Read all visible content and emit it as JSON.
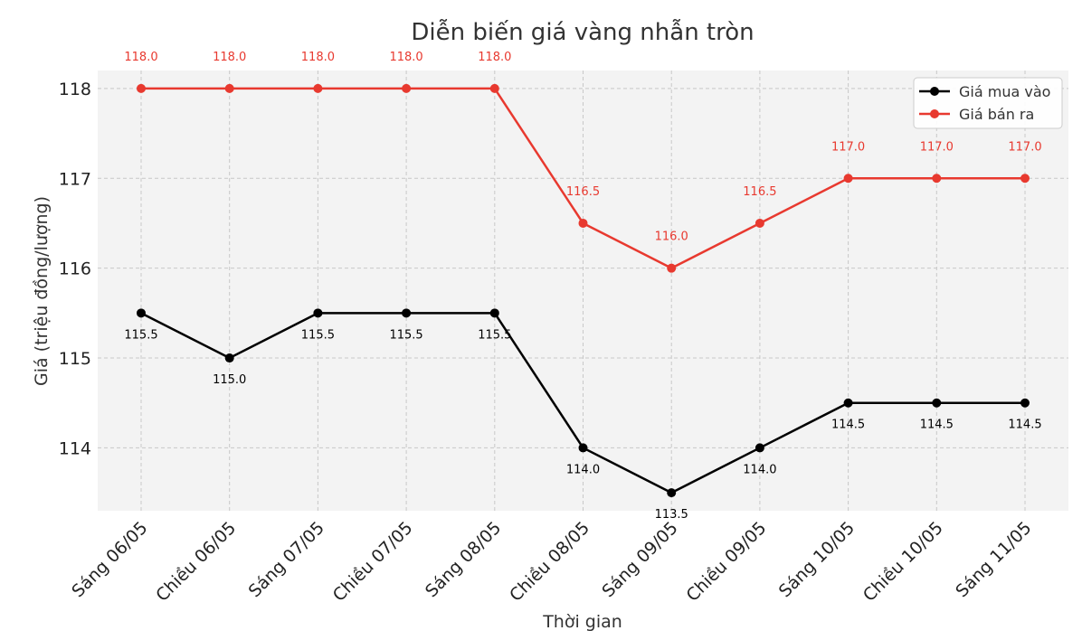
{
  "chart_data": {
    "type": "line",
    "title": "Diễn biến giá vàng nhẫn tròn",
    "xlabel": "Thời gian",
    "ylabel": "Giá (triệu đồng/lượng)",
    "categories": [
      "Sáng 06/05",
      "Chiều 06/05",
      "Sáng 07/05",
      "Chiều 07/05",
      "Sáng 08/05",
      "Chiều 08/05",
      "Sáng 09/05",
      "Chiều 09/05",
      "Sáng 10/05",
      "Chiều 10/05",
      "Sáng 11/05"
    ],
    "ylim": [
      113.3,
      118.2
    ],
    "yticks": [
      "114",
      "115",
      "116",
      "117",
      "118"
    ],
    "grid": true,
    "legend_position": "top-right",
    "series": [
      {
        "name": "Giá mua vào",
        "color": "#000000",
        "values": [
          115.5,
          115.0,
          115.5,
          115.5,
          115.5,
          114.0,
          113.5,
          114.0,
          114.5,
          114.5,
          114.5
        ],
        "labels": [
          "115.5",
          "115.0",
          "115.5",
          "115.5",
          "115.5",
          "114.0",
          "113.5",
          "114.0",
          "114.5",
          "114.5",
          "114.5"
        ]
      },
      {
        "name": "Giá bán ra",
        "color": "#e8392f",
        "values": [
          118.0,
          118.0,
          118.0,
          118.0,
          118.0,
          116.5,
          116.0,
          116.5,
          117.0,
          117.0,
          117.0
        ],
        "labels": [
          "118.0",
          "118.0",
          "118.0",
          "118.0",
          "118.0",
          "116.5",
          "116.0",
          "116.5",
          "117.0",
          "117.0",
          "117.0"
        ]
      }
    ]
  }
}
